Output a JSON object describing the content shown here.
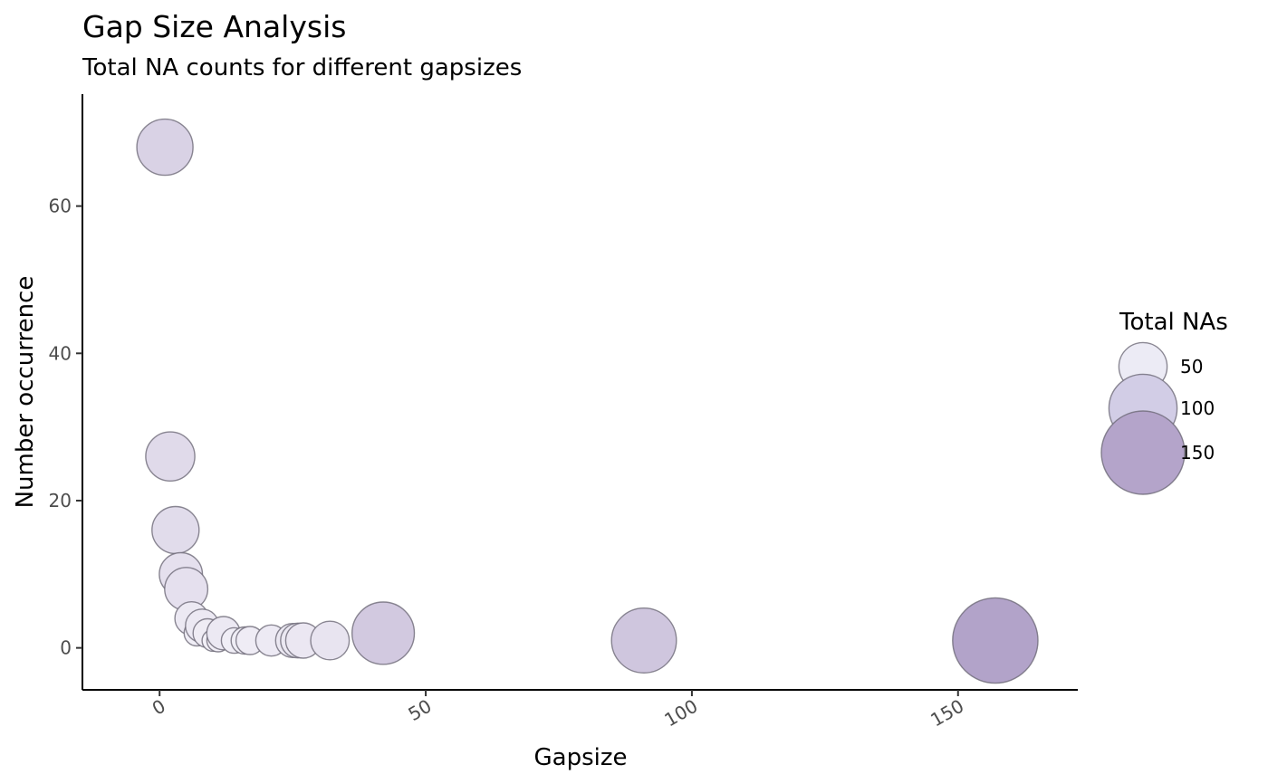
{
  "chart_data": {
    "type": "scatter",
    "title": "Gap Size Analysis",
    "subtitle": "Total NA counts for different gapsizes",
    "xlabel": "Gapsize",
    "ylabel": "Number occurrence",
    "xlim": [
      -14.5,
      172.5
    ],
    "ylim": [
      -5.7,
      75.2
    ],
    "x_ticks": [
      0,
      50,
      100,
      150
    ],
    "y_ticks": [
      0,
      20,
      40,
      60
    ],
    "size_variable": "Total NAs",
    "grid": false,
    "legend": {
      "title": "Total NAs",
      "position": "right",
      "entries": [
        {
          "label": "50",
          "value": 50,
          "color": "#ecebf5"
        },
        {
          "label": "100",
          "value": 100,
          "color": "#d2cde6"
        },
        {
          "label": "150",
          "value": 150,
          "color": "#b4a4ca"
        }
      ]
    },
    "colors": {
      "low": "#f2f0f7",
      "high": "#b2a3c9",
      "outline": "#6e6a78"
    },
    "points": [
      {
        "x": 1,
        "y": 68,
        "total": 68
      },
      {
        "x": 2,
        "y": 26,
        "total": 52
      },
      {
        "x": 3,
        "y": 16,
        "total": 48
      },
      {
        "x": 4,
        "y": 10,
        "total": 40
      },
      {
        "x": 5,
        "y": 8,
        "total": 40
      },
      {
        "x": 6,
        "y": 4,
        "total": 24
      },
      {
        "x": 7,
        "y": 2,
        "total": 14
      },
      {
        "x": 8,
        "y": 3,
        "total": 24
      },
      {
        "x": 9,
        "y": 2,
        "total": 18
      },
      {
        "x": 10,
        "y": 1,
        "total": 10
      },
      {
        "x": 11,
        "y": 1,
        "total": 11
      },
      {
        "x": 12,
        "y": 2,
        "total": 24
      },
      {
        "x": 14,
        "y": 1,
        "total": 14
      },
      {
        "x": 16,
        "y": 1,
        "total": 16
      },
      {
        "x": 17,
        "y": 1,
        "total": 17
      },
      {
        "x": 21,
        "y": 1,
        "total": 21
      },
      {
        "x": 25,
        "y": 1,
        "total": 25
      },
      {
        "x": 26,
        "y": 1,
        "total": 26
      },
      {
        "x": 27,
        "y": 1,
        "total": 27
      },
      {
        "x": 32,
        "y": 1,
        "total": 32
      },
      {
        "x": 42,
        "y": 2,
        "total": 84
      },
      {
        "x": 91,
        "y": 1,
        "total": 91
      },
      {
        "x": 157,
        "y": 1,
        "total": 157
      }
    ]
  }
}
